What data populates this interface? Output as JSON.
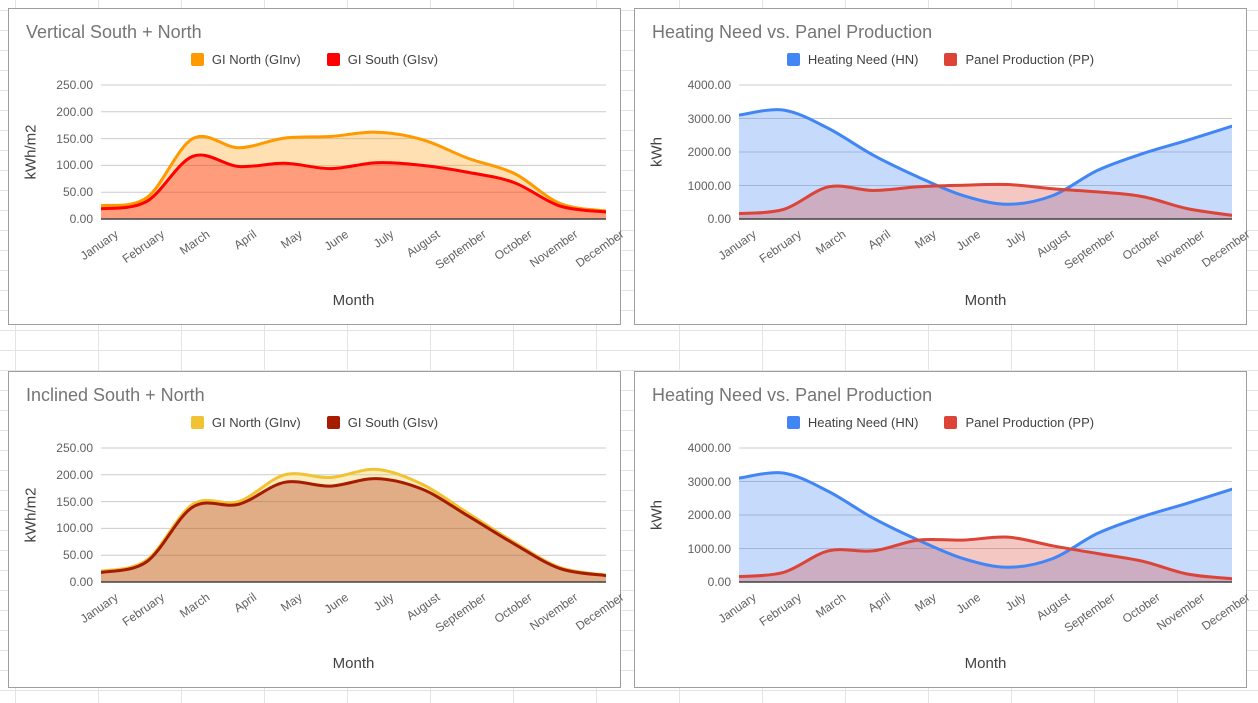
{
  "page": {
    "background": "#ffffff",
    "grid_line_color": "#e4e4e4",
    "card_border_color": "#9e9e9e",
    "gridline_color": "#cccccc",
    "baseline_color": "#424242"
  },
  "chart_data": [
    {
      "type": "area",
      "smooth": true,
      "stacked": false,
      "grid": true,
      "legend_position": "top",
      "title": "Vertical South + North",
      "xlabel": "Month",
      "ylabel": "kWh/m2",
      "ylim": [
        0,
        250
      ],
      "y_tick_labels": [
        "0.00",
        "50.00",
        "100.00",
        "150.00",
        "200.00",
        "250.00"
      ],
      "categories": [
        "January",
        "February",
        "March",
        "April",
        "May",
        "June",
        "July",
        "August",
        "September",
        "October",
        "November",
        "December"
      ],
      "series": [
        {
          "name": "GI North (GInv)",
          "color": "#FF9900",
          "values": [
            25,
            40,
            150,
            133,
            151,
            154,
            162,
            148,
            113,
            85,
            29,
            15
          ]
        },
        {
          "name": "GI South (GIsv)",
          "color": "#FF0000",
          "values": [
            19,
            33,
            117,
            98,
            104,
            94,
            105,
            100,
            87,
            68,
            24,
            13
          ]
        }
      ]
    },
    {
      "type": "area",
      "smooth": true,
      "stacked": false,
      "grid": true,
      "legend_position": "top",
      "title": "Heating Need vs. Panel Production",
      "xlabel": "Month",
      "ylabel": "kWh",
      "ylim": [
        0,
        4000
      ],
      "y_tick_labels": [
        "0.00",
        "1000.00",
        "2000.00",
        "3000.00",
        "4000.00"
      ],
      "categories": [
        "January",
        "February",
        "March",
        "April",
        "May",
        "June",
        "July",
        "August",
        "September",
        "October",
        "November",
        "December"
      ],
      "series": [
        {
          "name": "Heating Need (HN)",
          "color": "#4285F4",
          "values": [
            3100,
            3250,
            2700,
            1900,
            1250,
            700,
            440,
            700,
            1450,
            1950,
            2350,
            2770
          ]
        },
        {
          "name": "Panel Production (PP)",
          "color": "#DB4437",
          "values": [
            160,
            290,
            960,
            850,
            960,
            1010,
            1030,
            900,
            810,
            670,
            310,
            110
          ]
        }
      ]
    },
    {
      "type": "area",
      "smooth": true,
      "stacked": false,
      "grid": true,
      "legend_position": "top",
      "title": "Inclined South + North",
      "xlabel": "Month",
      "ylabel": "kWh/m2",
      "ylim": [
        0,
        250
      ],
      "y_tick_labels": [
        "0.00",
        "50.00",
        "100.00",
        "150.00",
        "200.00",
        "250.00"
      ],
      "categories": [
        "January",
        "February",
        "March",
        "April",
        "May",
        "June",
        "July",
        "August",
        "September",
        "October",
        "November",
        "December"
      ],
      "series": [
        {
          "name": "GI North (GInv)",
          "color": "#F1C232",
          "values": [
            20,
            41,
            145,
            150,
            200,
            195,
            210,
            182,
            128,
            74,
            27,
            13
          ]
        },
        {
          "name": "GI South (GIsv)",
          "color": "#A61C00",
          "values": [
            18,
            38,
            140,
            145,
            186,
            179,
            193,
            173,
            123,
            71,
            25,
            12
          ]
        }
      ]
    },
    {
      "type": "area",
      "smooth": true,
      "stacked": false,
      "grid": true,
      "legend_position": "top",
      "title": "Heating Need vs. Panel Production",
      "xlabel": "Month",
      "ylabel": "kWh",
      "ylim": [
        0,
        4000
      ],
      "y_tick_labels": [
        "0.00",
        "1000.00",
        "2000.00",
        "3000.00",
        "4000.00"
      ],
      "categories": [
        "January",
        "February",
        "March",
        "April",
        "May",
        "June",
        "July",
        "August",
        "September",
        "October",
        "November",
        "December"
      ],
      "series": [
        {
          "name": "Heating Need (HN)",
          "color": "#4285F4",
          "values": [
            3100,
            3250,
            2700,
            1900,
            1250,
            700,
            440,
            700,
            1450,
            1950,
            2350,
            2770
          ]
        },
        {
          "name": "Panel Production (PP)",
          "color": "#DB4437",
          "values": [
            160,
            290,
            930,
            930,
            1250,
            1250,
            1340,
            1080,
            850,
            620,
            240,
            100
          ]
        }
      ]
    }
  ]
}
